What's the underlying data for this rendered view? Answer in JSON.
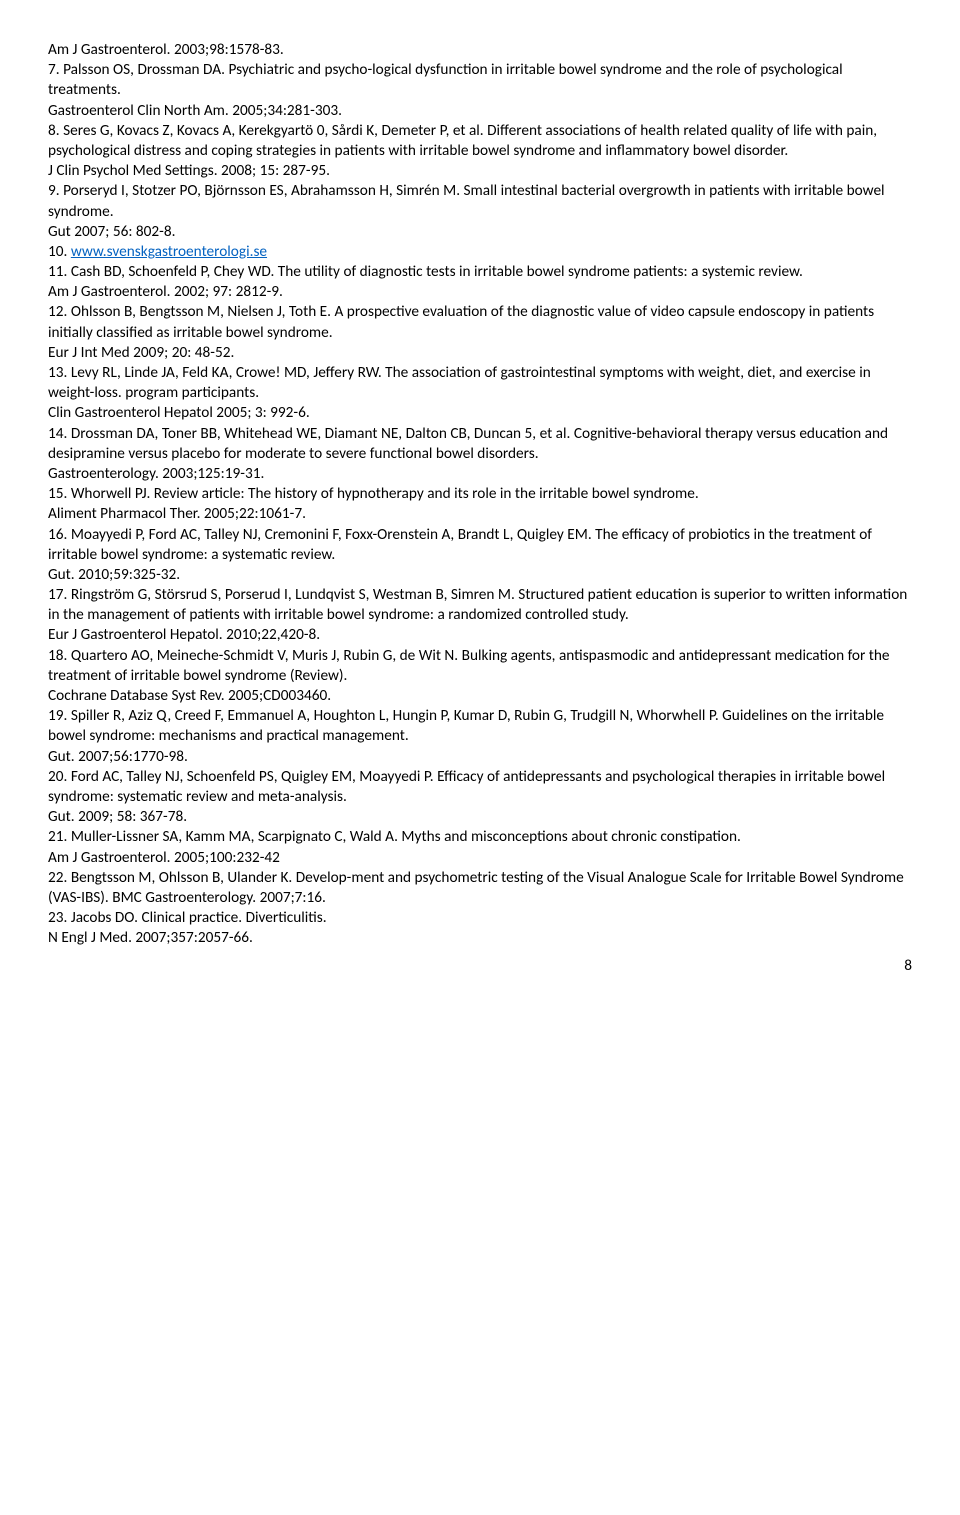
{
  "lines": [
    "Am J Gastroenterol. 2003;98:1578-83.",
    "7. Palsson OS, Drossman DA. Psychiatric and psycho-logical dysfunction in irritable bowel syndrome and the role of psychological treatments.",
    "Gastroenterol Clin North Am. 2005;34:281-303.",
    "8. Seres G, Kovacs Z, Kovacs A, Kerekgyartö 0, Sårdi K, Demeter P, et al. Different associations of health related quality of life with pain, psychological distress and coping strategies in patients with irritable bowel syndrome and inflammatory bowel disorder.",
    "J Clin Psychol Med Settings. 2008; 15: 287-95.",
    "9. Porseryd I, Stotzer PO, Björnsson ES, Abrahamsson H, Simrén M. Small intestinal bacterial overgrowth in patients with irritable bowel syndrome.",
    "Gut 2007; 56: 802-8.",
    "10. ",
    "11. Cash BD, Schoenfeld P, Chey WD. The utility of diagnostic tests in irritable bowel syndrome patients: a systemic review.",
    "Am J Gastroenterol. 2002; 97: 2812-9.",
    "12. Ohlsson B, Bengtsson M, Nielsen J, Toth E. A prospective evaluation of the diagnostic value of video capsule endoscopy in patients initially classified as irritable bowel syndrome.",
    "Eur J Int Med 2009; 20: 48-52.",
    "13. Levy RL, Linde JA, Feld KA, Crowe! MD, Jeffery RW. The association of gastrointestinal symptoms with weight, diet, and exercise in weight-loss. program participants.",
    "Clin Gastroenterol Hepatol 2005; 3: 992-6.",
    "14. Drossman DA, Toner BB, Whitehead WE, Diamant NE, Dalton CB, Duncan 5, et al. Cognitive-behavioral therapy versus education and desipramine versus placebo for moderate to severe functional bowel disorders.",
    "Gastroenterology. 2003;125:19-31.",
    "15. Whorwell PJ. Review article: The history of hypnotherapy and its role in the irritable bowel syndrome.",
    "Aliment Pharmacol Ther. 2005;22:1061-7.",
    "16. Moayyedi P, Ford AC, Talley NJ, Cremonini F, Foxx-Orenstein A, Brandt L, Quigley EM. The efficacy of probiotics in the treatment of irritable bowel syndrome: a systematic review.",
    "Gut. 2010;59:325-32.",
    "17. Ringström G, Störsrud S, Porserud I, Lundqvist S, Westman B, Simren M. Structured patient education is superior to written information in the management of patients with irritable bowel syndrome: a randomized controlled study.",
    "Eur J Gastroenterol Hepatol. 2010;22,420-8.",
    "18. Quartero AO, Meineche-Schmidt V, Muris J, Rubin G, de Wit N. Bulking agents, antispasmodic and antidepressant medication for the treatment of irritable bowel syndrome (Review).",
    "Cochrane Database Syst Rev. 2005;CD003460.",
    "19. Spiller R, Aziz Q, Creed F, Emmanuel A, Houghton L, Hungin P, Kumar D, Rubin G, Trudgill N, Whorwhell P. Guidelines on the irritable bowel syndrome: mechanisms and practical management.",
    "Gut. 2007;56:1770-98.",
    "20. Ford AC, Talley NJ, Schoenfeld PS, Quigley EM, Moayyedi P. Efficacy of antidepressants and psychological therapies in irritable bowel syndrome: systematic review and meta-analysis.",
    "Gut. 2009; 58: 367-78.",
    "21. Muller-Lissner SA, Kamm MA, Scarpignato C, Wald A. Myths and misconceptions about chronic constipation.",
    "Am J Gastroenterol. 2005;100:232-42",
    "22. Bengtsson M, Ohlsson B, Ulander K. Develop-ment and psychometric testing of the Visual Analogue Scale for Irritable Bowel Syndrome (VAS-IBS). BMC Gastroenterology. 2007;7:16.",
    "23. Jacobs DO. Clinical practice. Diverticulitis.",
    "N Engl J Med. 2007;357:2057-66."
  ],
  "link_text": "www.svenskgastroenterologi.se",
  "link_url": "#",
  "page_number": "8",
  "colors": {
    "text": "#000000",
    "link": "#0563c1",
    "background": "#ffffff"
  }
}
